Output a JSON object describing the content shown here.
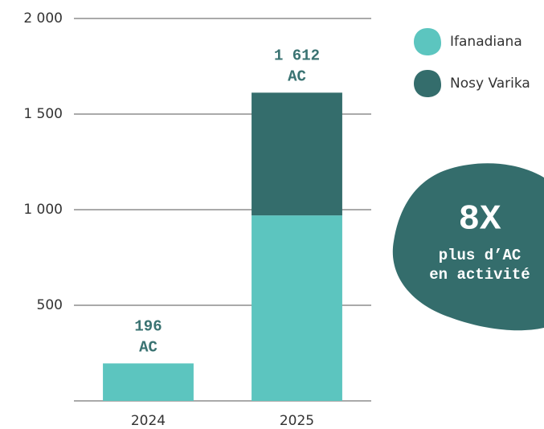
{
  "chart_data": {
    "type": "stacked_bar",
    "categories": [
      "2024",
      "2025"
    ],
    "series": [
      {
        "name": "Ifanadiana",
        "color": "#5cc5bf",
        "values": [
          196,
          970
        ]
      },
      {
        "name": "Nosy Varika",
        "color": "#346d6c",
        "values": [
          0,
          642
        ]
      }
    ],
    "total_labels": [
      [
        "196",
        "AC"
      ],
      [
        "1 612",
        "AC"
      ]
    ],
    "ylim": [
      0,
      2000
    ],
    "yticks": [
      {
        "value": 500,
        "label": "500"
      },
      {
        "value": 1000,
        "label": "1 000"
      },
      {
        "value": 1500,
        "label": "1 500"
      },
      {
        "value": 2000,
        "label": "2 000"
      }
    ],
    "grid": true,
    "legend": "top-right",
    "badge": {
      "headline": "8X",
      "lines": [
        "plus d’AC",
        "en activité"
      ],
      "color": "#346d6c"
    }
  }
}
